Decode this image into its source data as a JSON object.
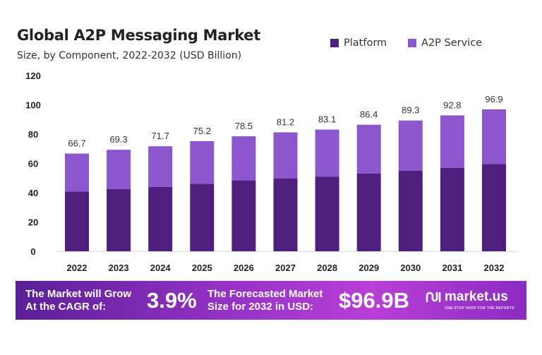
{
  "chart_data": {
    "type": "bar",
    "stacked": true,
    "title": "Global A2P Messaging Market",
    "subtitle": "Size, by Component, 2022-2032 (USD Billion)",
    "categories": [
      "2022",
      "2023",
      "2024",
      "2025",
      "2026",
      "2027",
      "2028",
      "2029",
      "2030",
      "2031",
      "2032"
    ],
    "series": [
      {
        "name": "Platform",
        "color": "#4f1f7d",
        "values": [
          40.7,
          42.4,
          44.0,
          46.0,
          48.4,
          49.8,
          51.0,
          53.0,
          55.0,
          56.9,
          59.6
        ]
      },
      {
        "name": "A2P Service",
        "color": "#8c57cc",
        "values": [
          26.0,
          26.9,
          27.7,
          29.2,
          30.1,
          31.4,
          32.1,
          33.4,
          34.3,
          35.9,
          37.3
        ]
      }
    ],
    "totals": [
      "66.7",
      "69.3",
      "71.7",
      "75.2",
      "78.5",
      "81.2",
      "83.1",
      "86.4",
      "89.3",
      "92.8",
      "96.9"
    ],
    "yticks": [
      0,
      20,
      40,
      60,
      80,
      100,
      120
    ],
    "ylim": [
      0,
      120
    ],
    "grid": false,
    "legend_position": "top-right"
  },
  "banner": {
    "cagr_text_line1": "The Market will Grow",
    "cagr_text_line2": "At the CAGR of:",
    "cagr_value": "3.9%",
    "forecast_text_line1": "The Forecasted Market",
    "forecast_text_line2": "Size for 2032 in USD:",
    "forecast_value": "$96.9B",
    "logo_name": "market.us",
    "logo_tagline": "ONE STOP SHOP FOR THE REPORTS"
  }
}
